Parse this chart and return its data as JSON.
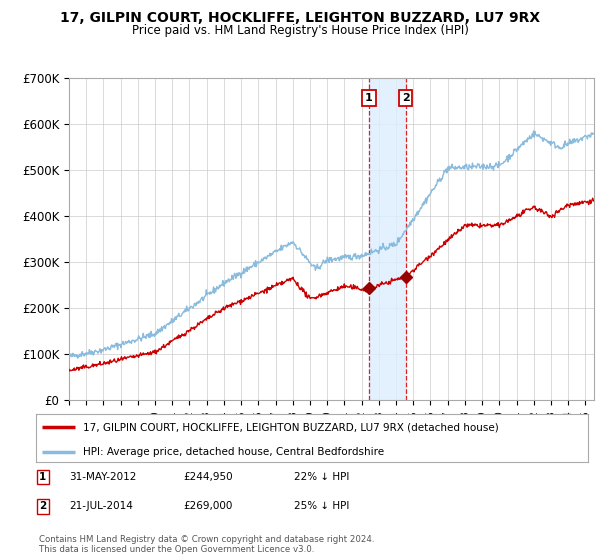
{
  "title": "17, GILPIN COURT, HOCKLIFFE, LEIGHTON BUZZARD, LU7 9RX",
  "subtitle": "Price paid vs. HM Land Registry's House Price Index (HPI)",
  "hpi_color": "#88bbdd",
  "price_color": "#cc0000",
  "marker_color": "#990000",
  "plot_bg_color": "#ffffff",
  "grid_color": "#cccccc",
  "shade_color": "#ddeeff",
  "dashed_color": "#dd2222",
  "ylim": [
    0,
    700000
  ],
  "yticks": [
    0,
    100000,
    200000,
    300000,
    400000,
    500000,
    600000,
    700000
  ],
  "ytick_labels": [
    "£0",
    "£100K",
    "£200K",
    "£300K",
    "£400K",
    "£500K",
    "£600K",
    "£700K"
  ],
  "transaction1": {
    "date_num": 2012.42,
    "price": 244950,
    "label": "1",
    "date_str": "31-MAY-2012",
    "pct": "22% ↓ HPI"
  },
  "transaction2": {
    "date_num": 2014.55,
    "price": 269000,
    "label": "2",
    "date_str": "21-JUL-2014",
    "pct": "25% ↓ HPI"
  },
  "legend1_label": "17, GILPIN COURT, HOCKLIFFE, LEIGHTON BUZZARD, LU7 9RX (detached house)",
  "legend2_label": "HPI: Average price, detached house, Central Bedfordshire",
  "footer": "Contains HM Land Registry data © Crown copyright and database right 2024.\nThis data is licensed under the Open Government Licence v3.0.",
  "xstart": 1995.0,
  "xend": 2025.5
}
